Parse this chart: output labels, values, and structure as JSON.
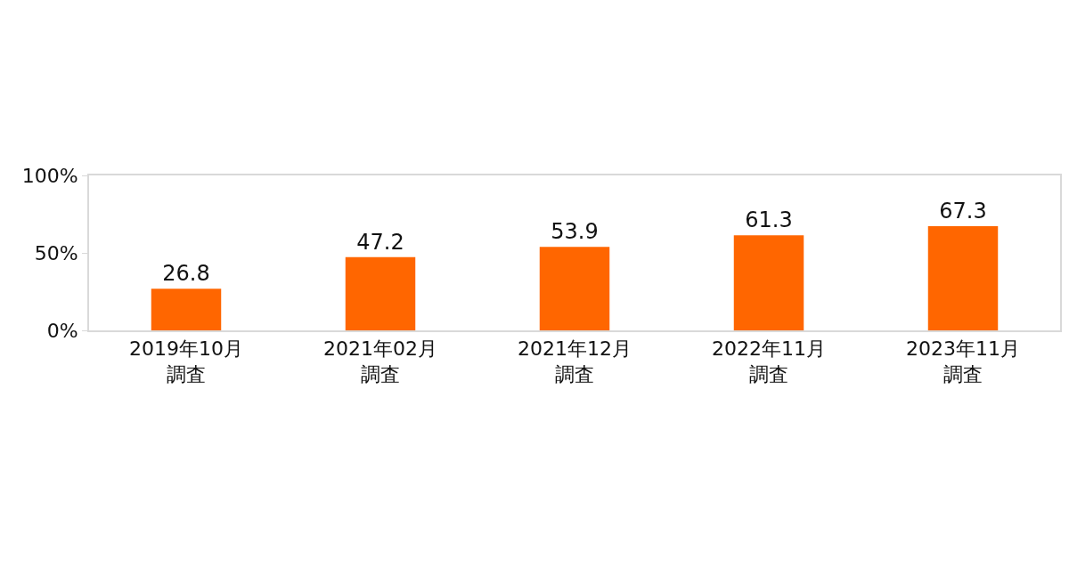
{
  "chart_data": {
    "type": "bar",
    "categories": [
      "2019年10月調査",
      "2021年02月調査",
      "2021年12月調査",
      "2022年11月調査",
      "2023年11月調査"
    ],
    "values": [
      26.8,
      47.2,
      53.9,
      61.3,
      67.3
    ],
    "color": "#ff6600",
    "ylim": [
      0,
      100
    ],
    "yticks": [
      {
        "value": 0,
        "label": "0%"
      },
      {
        "value": 50,
        "label": "50%"
      },
      {
        "value": 100,
        "label": "100%"
      }
    ],
    "data_labels": true
  }
}
